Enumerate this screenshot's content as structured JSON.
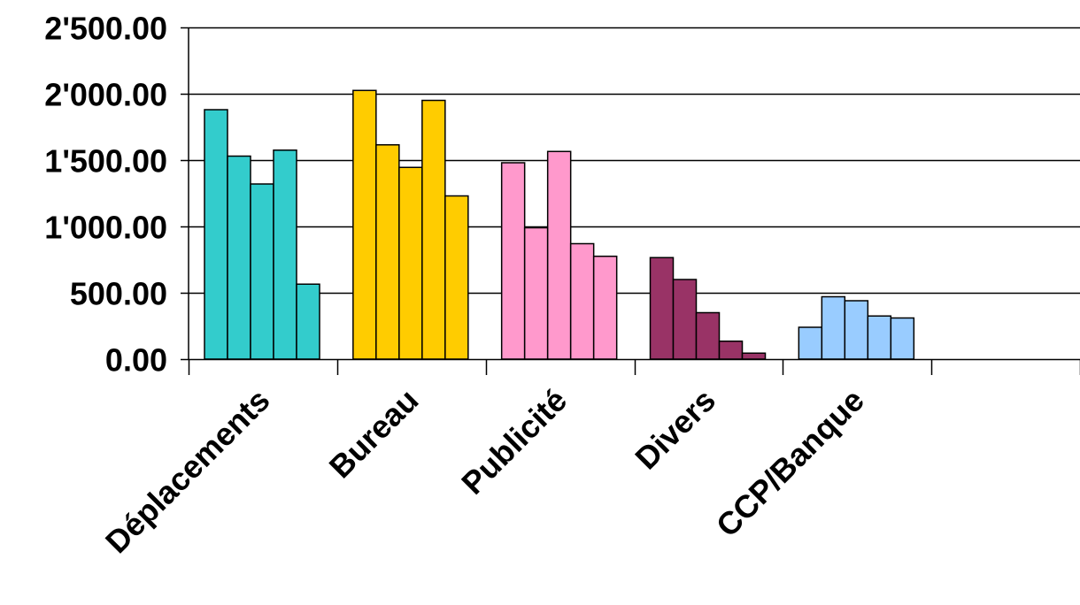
{
  "chart_data": {
    "type": "bar",
    "categories": [
      "Déplacements",
      "Bureau",
      "Publicité",
      "Divers",
      "CCP/Banque",
      ""
    ],
    "category_colors": [
      "#33CCCC",
      "#FFCC00",
      "#FF99CC",
      "#993366",
      "#99CCFF",
      "#FFFFFF"
    ],
    "values": [
      [
        1880,
        1530,
        1320,
        1575,
        565
      ],
      [
        2025,
        1615,
        1445,
        1950,
        1230
      ],
      [
        1480,
        990,
        1565,
        870,
        775
      ],
      [
        765,
        600,
        350,
        135,
        45
      ],
      [
        240,
        470,
        440,
        325,
        310
      ],
      []
    ],
    "ylim": [
      0,
      2500
    ],
    "yticks": [
      0,
      500,
      1000,
      1500,
      2000,
      2500
    ],
    "ytick_labels": [
      "0.00",
      "500.00",
      "1'000.00",
      "1'500.00",
      "2'000.00",
      "2'500.00"
    ],
    "grid": true,
    "legend": "none"
  }
}
